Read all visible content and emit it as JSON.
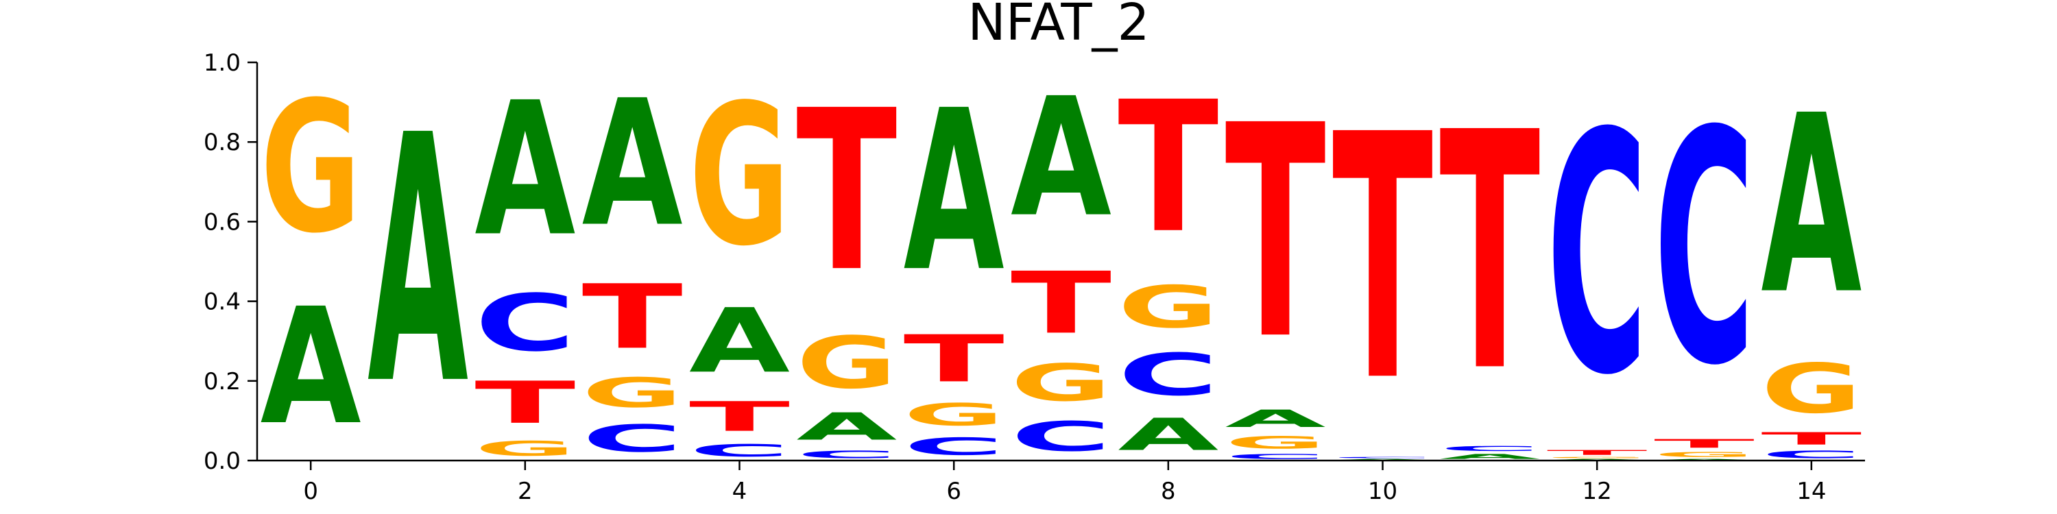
{
  "chart_data": {
    "type": "sequence-logo",
    "title": "NFAT_2",
    "xlabel": "",
    "ylabel": "",
    "ylim": [
      0,
      1.0
    ],
    "xlim": [
      -0.5,
      14.5
    ],
    "yticks": [
      "0.0",
      "0.2",
      "0.4",
      "0.6",
      "0.8",
      "1.0"
    ],
    "xticks": [
      "0",
      "2",
      "4",
      "6",
      "8",
      "10",
      "12",
      "14"
    ],
    "letters": [
      "A",
      "C",
      "G",
      "T"
    ],
    "colors": {
      "A": "#008000",
      "C": "#0000ff",
      "G": "#ffa500",
      "T": "#ff0000"
    },
    "positions": [
      {
        "pos": 0,
        "A": 0.47,
        "C": 0.0,
        "G": 0.53,
        "T": 0.0
      },
      {
        "pos": 1,
        "A": 1.0,
        "C": 0.0,
        "G": 0.0,
        "T": 0.0
      },
      {
        "pos": 2,
        "A": 0.54,
        "C": 0.23,
        "G": 0.06,
        "T": 0.17
      },
      {
        "pos": 3,
        "A": 0.51,
        "C": 0.11,
        "G": 0.12,
        "T": 0.26
      },
      {
        "pos": 4,
        "A": 0.26,
        "C": 0.05,
        "G": 0.57,
        "T": 0.12
      },
      {
        "pos": 5,
        "A": 0.11,
        "C": 0.03,
        "G": 0.21,
        "T": 0.65
      },
      {
        "pos": 6,
        "A": 0.65,
        "C": 0.07,
        "G": 0.09,
        "T": 0.19
      },
      {
        "pos": 7,
        "A": 0.48,
        "C": 0.12,
        "G": 0.15,
        "T": 0.25
      },
      {
        "pos": 8,
        "A": 0.13,
        "C": 0.17,
        "G": 0.17,
        "T": 0.53
      },
      {
        "pos": 9,
        "A": 0.07,
        "C": 0.02,
        "G": 0.05,
        "T": 0.86
      },
      {
        "pos": 10,
        "A": 0.005,
        "C": 0.005,
        "G": 0.0,
        "T": 0.99
      },
      {
        "pos": 11,
        "A": 0.02,
        "C": 0.02,
        "G": 0.0,
        "T": 0.96
      },
      {
        "pos": 12,
        "A": 0.005,
        "C": 0.97,
        "G": 0.005,
        "T": 0.02
      },
      {
        "pos": 13,
        "A": 0.005,
        "C": 0.94,
        "G": 0.02,
        "T": 0.035
      },
      {
        "pos": 14,
        "A": 0.72,
        "C": 0.03,
        "G": 0.2,
        "T": 0.05
      }
    ]
  }
}
